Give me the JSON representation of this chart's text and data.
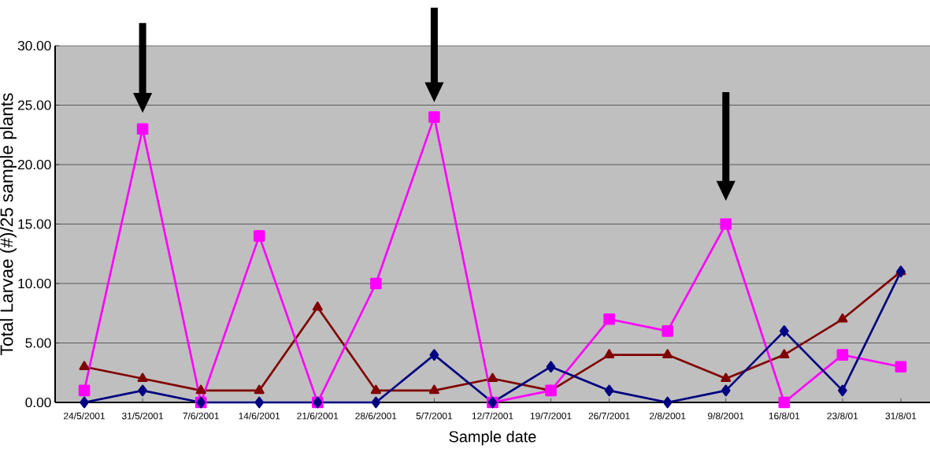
{
  "chart_data": {
    "type": "line",
    "xlabel": "Sample date",
    "ylabel": "Total Larvae (#)/25 sample plants",
    "categories": [
      "24/5/2001",
      "31/5/2001",
      "7/6/2001",
      "14/6/2001",
      "21/6/2001",
      "28/6/2001",
      "5/7/2001",
      "12/7/2001",
      "19/7/2001",
      "26/7/2001",
      "2/8/2001",
      "9/8/2001",
      "16/8/01",
      "23/8/01",
      "31/8/01"
    ],
    "series": [
      {
        "color": "#000080",
        "marker": "diamond",
        "values": [
          0,
          1,
          0,
          0,
          0,
          0,
          4,
          0,
          3,
          1,
          0,
          1,
          6,
          1,
          11
        ]
      },
      {
        "color": "#ff00ff",
        "marker": "square",
        "values": [
          1,
          23,
          0,
          14,
          0,
          10,
          24,
          0,
          1,
          7,
          6,
          15,
          0,
          4,
          3
        ]
      },
      {
        "color": "#800000",
        "marker": "triangle",
        "values": [
          3,
          2,
          1,
          1,
          8,
          1,
          1,
          2,
          1,
          4,
          4,
          2,
          4,
          7,
          11
        ]
      }
    ],
    "ylim": [
      0,
      30
    ],
    "yticks": [
      {
        "value": 0,
        "label": "0.00"
      },
      {
        "value": 5,
        "label": "5.00"
      },
      {
        "value": 10,
        "label": "10.00"
      },
      {
        "value": 15,
        "label": "15.00"
      },
      {
        "value": 20,
        "label": "20.00"
      },
      {
        "value": 25,
        "label": "25.00"
      },
      {
        "value": 30,
        "label": "30.00"
      }
    ],
    "grid": "y"
  }
}
